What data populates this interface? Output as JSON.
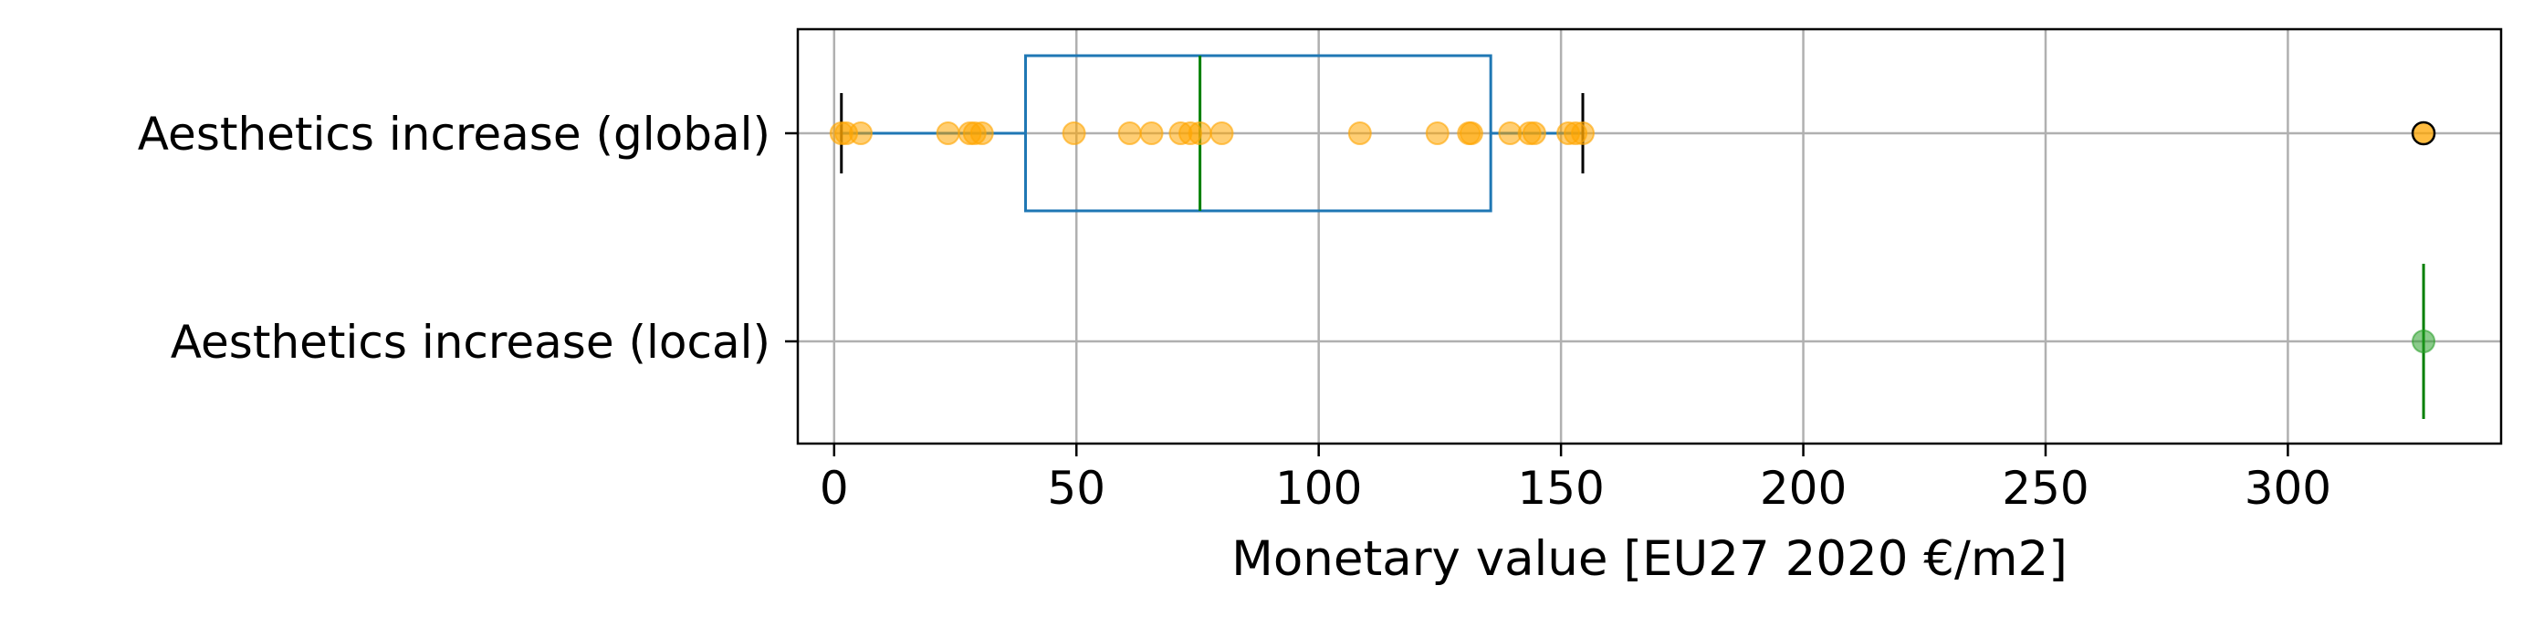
{
  "chart_data": {
    "type": "box",
    "orientation": "horizontal",
    "xlabel": "Monetary value [EU27 2020 €/m2]",
    "xlim": [
      -7.5,
      344
    ],
    "xticks": [
      0,
      50,
      100,
      150,
      200,
      250,
      300
    ],
    "grid": true,
    "categories": [
      "Aesthetics increase (global)",
      "Aesthetics increase (local)"
    ],
    "colors": {
      "box": "#1f77b4",
      "median": "#008000",
      "points": "#ffa500",
      "local_point": "#2ca02c",
      "whisker_cap": "#000000"
    },
    "series": [
      {
        "category": "Aesthetics increase (global)",
        "whisker_low": 1.5,
        "q1": 39.5,
        "median": 75.5,
        "q3": 135.5,
        "whisker_high": 154.5,
        "outliers": [
          328
        ],
        "points": [
          1.5,
          2.5,
          5.5,
          23.5,
          28,
          29,
          30.5,
          49.5,
          61,
          65.5,
          71.5,
          73.5,
          75.5,
          80,
          108.5,
          124.5,
          131,
          131.5,
          139.5,
          143.5,
          144.5,
          151.5,
          153,
          154.5
        ]
      },
      {
        "category": "Aesthetics increase (local)",
        "whisker_low": 328,
        "q1": 328,
        "median": 328,
        "q3": 328,
        "whisker_high": 328,
        "outliers": [],
        "points": [
          328
        ]
      }
    ]
  }
}
